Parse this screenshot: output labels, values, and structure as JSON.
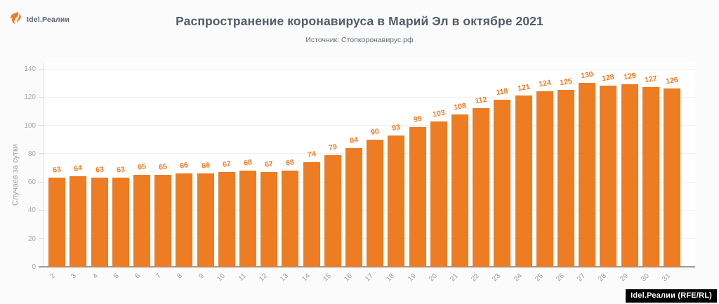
{
  "logo": {
    "label": "Idel.Реалии"
  },
  "header": {
    "title": "Распространение коронавируса в Марий Эл в октябре 2021",
    "subtitle": "Источник: Стопкоронавирус.рф"
  },
  "watermark": {
    "label": "Idel.Реалии (RFE/RL)"
  },
  "colors": {
    "bar": "#ed7c23",
    "value_label": "#ed7c23",
    "title_text": "#525d68",
    "subtitle_text": "#626d76",
    "axis_text": "#a8a8a8",
    "gridline": "#eeeeee",
    "x_axis_line": "#9b9b9b",
    "watermark_bg": "#000000",
    "watermark_text": "#ffffff"
  },
  "chart_data": {
    "type": "bar",
    "title": "Распространение коронавируса в Марий Эл в октябре 2021",
    "subtitle": "Источник: Стопкоронавирус.рф",
    "xlabel": "",
    "ylabel": "Случаев за сутки",
    "categories": [
      2,
      3,
      4,
      5,
      6,
      7,
      8,
      9,
      10,
      11,
      12,
      13,
      14,
      15,
      16,
      17,
      18,
      19,
      20,
      21,
      22,
      23,
      24,
      25,
      26,
      27,
      28,
      29,
      30,
      31
    ],
    "values": [
      63,
      64,
      63,
      63,
      65,
      65,
      66,
      66,
      67,
      68,
      67,
      68,
      74,
      79,
      84,
      90,
      93,
      99,
      103,
      108,
      112,
      118,
      121,
      124,
      125,
      130,
      128,
      129,
      127,
      126
    ],
    "ylim": [
      0,
      145
    ],
    "yticks": [
      0,
      20,
      40,
      60,
      80,
      100,
      120,
      140
    ],
    "grid": true,
    "legend": false,
    "data_labels": true,
    "bar_color": "#ed7c23"
  }
}
